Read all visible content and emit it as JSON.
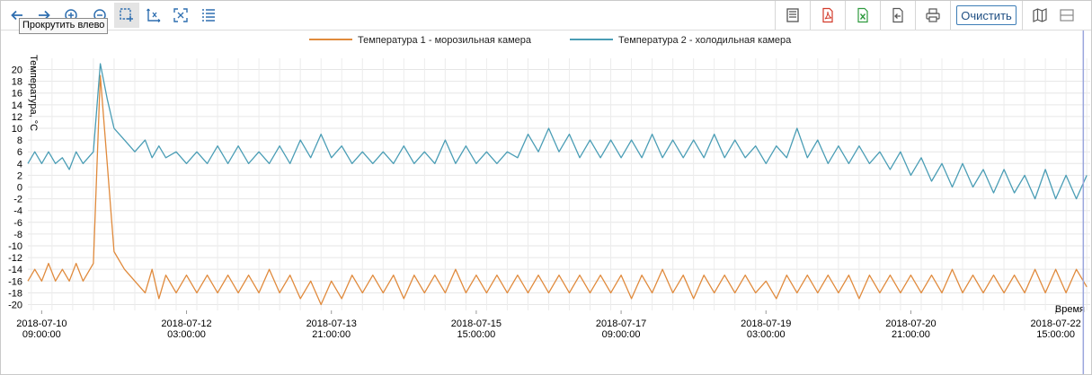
{
  "toolbar": {
    "tooltip": "Прокрутить влево",
    "clear_label": "Очистить",
    "icons": [
      "arrow-left-icon",
      "arrow-right-icon",
      "zoom-in-icon",
      "zoom-out-icon",
      "box-select-icon",
      "zoom-x-icon",
      "fit-to-screen-icon",
      "list-icon",
      "table-icon",
      "pdf-icon",
      "excel-icon",
      "export-icon",
      "print-icon",
      "map-icon",
      "panel-icon"
    ],
    "accent_color": "#3d7db6"
  },
  "chart_data": {
    "type": "line",
    "title": "",
    "xlabel": "Время",
    "ylabel": "Температура, °C",
    "ylim": [
      -21,
      21
    ],
    "yticks": [
      20,
      18,
      16,
      14,
      12,
      10,
      8,
      6,
      4,
      2,
      0,
      -2,
      -4,
      -6,
      -8,
      -10,
      -12,
      -14,
      -16,
      -18,
      -20
    ],
    "xrange": [
      "2018-07-10 05:00:00",
      "2018-07-23 01:00:00"
    ],
    "xticks": [
      {
        "date": "2018-07-10",
        "time": "09:00:00"
      },
      {
        "date": "2018-07-12",
        "time": "03:00:00"
      },
      {
        "date": "2018-07-13",
        "time": "21:00:00"
      },
      {
        "date": "2018-07-15",
        "time": "15:00:00"
      },
      {
        "date": "2018-07-17",
        "time": "09:00:00"
      },
      {
        "date": "2018-07-19",
        "time": "03:00:00"
      },
      {
        "date": "2018-07-20",
        "time": "21:00:00"
      },
      {
        "date": "2018-07-22",
        "time": "15:00:00"
      }
    ],
    "grid": true,
    "legend_position": "top-center",
    "cursor_time": "2018-07-22 23:00:00",
    "series": [
      {
        "name": "Температура 1 - морозильная камера",
        "color": "#e08a3c",
        "points": [
          [
            "2018-07-10 05:00",
            -16
          ],
          [
            "2018-07-10 07:00",
            -14
          ],
          [
            "2018-07-10 09:00",
            -16
          ],
          [
            "2018-07-10 11:00",
            -13
          ],
          [
            "2018-07-10 13:00",
            -16
          ],
          [
            "2018-07-10 15:00",
            -14
          ],
          [
            "2018-07-10 17:00",
            -16
          ],
          [
            "2018-07-10 19:00",
            -13
          ],
          [
            "2018-07-10 21:00",
            -16
          ],
          [
            "2018-07-11 00:00",
            -13
          ],
          [
            "2018-07-11 02:00",
            19
          ],
          [
            "2018-07-11 04:00",
            4
          ],
          [
            "2018-07-11 06:00",
            -11
          ],
          [
            "2018-07-11 09:00",
            -14
          ],
          [
            "2018-07-11 12:00",
            -16
          ],
          [
            "2018-07-11 15:00",
            -18
          ],
          [
            "2018-07-11 17:00",
            -14
          ],
          [
            "2018-07-11 19:00",
            -19
          ],
          [
            "2018-07-11 21:00",
            -15
          ],
          [
            "2018-07-12 00:00",
            -18
          ],
          [
            "2018-07-12 03:00",
            -15
          ],
          [
            "2018-07-12 06:00",
            -18
          ],
          [
            "2018-07-12 09:00",
            -15
          ],
          [
            "2018-07-12 12:00",
            -18
          ],
          [
            "2018-07-12 15:00",
            -15
          ],
          [
            "2018-07-12 18:00",
            -18
          ],
          [
            "2018-07-12 21:00",
            -15
          ],
          [
            "2018-07-13 00:00",
            -18
          ],
          [
            "2018-07-13 03:00",
            -14
          ],
          [
            "2018-07-13 06:00",
            -18
          ],
          [
            "2018-07-13 09:00",
            -15
          ],
          [
            "2018-07-13 12:00",
            -19
          ],
          [
            "2018-07-13 15:00",
            -16
          ],
          [
            "2018-07-13 18:00",
            -20
          ],
          [
            "2018-07-13 21:00",
            -16
          ],
          [
            "2018-07-14 00:00",
            -19
          ],
          [
            "2018-07-14 03:00",
            -15
          ],
          [
            "2018-07-14 06:00",
            -18
          ],
          [
            "2018-07-14 09:00",
            -15
          ],
          [
            "2018-07-14 12:00",
            -18
          ],
          [
            "2018-07-14 15:00",
            -15
          ],
          [
            "2018-07-14 18:00",
            -19
          ],
          [
            "2018-07-14 21:00",
            -15
          ],
          [
            "2018-07-15 00:00",
            -18
          ],
          [
            "2018-07-15 03:00",
            -15
          ],
          [
            "2018-07-15 06:00",
            -18
          ],
          [
            "2018-07-15 09:00",
            -14
          ],
          [
            "2018-07-15 12:00",
            -18
          ],
          [
            "2018-07-15 15:00",
            -15
          ],
          [
            "2018-07-15 18:00",
            -18
          ],
          [
            "2018-07-15 21:00",
            -15
          ],
          [
            "2018-07-16 00:00",
            -18
          ],
          [
            "2018-07-16 03:00",
            -15
          ],
          [
            "2018-07-16 06:00",
            -18
          ],
          [
            "2018-07-16 09:00",
            -15
          ],
          [
            "2018-07-16 12:00",
            -18
          ],
          [
            "2018-07-16 15:00",
            -15
          ],
          [
            "2018-07-16 18:00",
            -18
          ],
          [
            "2018-07-16 21:00",
            -15
          ],
          [
            "2018-07-17 00:00",
            -18
          ],
          [
            "2018-07-17 03:00",
            -15
          ],
          [
            "2018-07-17 06:00",
            -18
          ],
          [
            "2018-07-17 09:00",
            -15
          ],
          [
            "2018-07-17 12:00",
            -19
          ],
          [
            "2018-07-17 15:00",
            -15
          ],
          [
            "2018-07-17 18:00",
            -18
          ],
          [
            "2018-07-17 21:00",
            -14
          ],
          [
            "2018-07-18 00:00",
            -18
          ],
          [
            "2018-07-18 03:00",
            -15
          ],
          [
            "2018-07-18 06:00",
            -19
          ],
          [
            "2018-07-18 09:00",
            -15
          ],
          [
            "2018-07-18 12:00",
            -18
          ],
          [
            "2018-07-18 15:00",
            -15
          ],
          [
            "2018-07-18 18:00",
            -18
          ],
          [
            "2018-07-18 21:00",
            -15
          ],
          [
            "2018-07-19 00:00",
            -18
          ],
          [
            "2018-07-19 03:00",
            -16
          ],
          [
            "2018-07-19 06:00",
            -19
          ],
          [
            "2018-07-19 09:00",
            -15
          ],
          [
            "2018-07-19 12:00",
            -18
          ],
          [
            "2018-07-19 15:00",
            -15
          ],
          [
            "2018-07-19 18:00",
            -18
          ],
          [
            "2018-07-19 21:00",
            -15
          ],
          [
            "2018-07-20 00:00",
            -18
          ],
          [
            "2018-07-20 03:00",
            -15
          ],
          [
            "2018-07-20 06:00",
            -19
          ],
          [
            "2018-07-20 09:00",
            -15
          ],
          [
            "2018-07-20 12:00",
            -18
          ],
          [
            "2018-07-20 15:00",
            -15
          ],
          [
            "2018-07-20 18:00",
            -18
          ],
          [
            "2018-07-20 21:00",
            -15
          ],
          [
            "2018-07-21 00:00",
            -18
          ],
          [
            "2018-07-21 03:00",
            -15
          ],
          [
            "2018-07-21 06:00",
            -18
          ],
          [
            "2018-07-21 09:00",
            -14
          ],
          [
            "2018-07-21 12:00",
            -18
          ],
          [
            "2018-07-21 15:00",
            -15
          ],
          [
            "2018-07-21 18:00",
            -18
          ],
          [
            "2018-07-21 21:00",
            -15
          ],
          [
            "2018-07-22 00:00",
            -18
          ],
          [
            "2018-07-22 03:00",
            -15
          ],
          [
            "2018-07-22 06:00",
            -18
          ],
          [
            "2018-07-22 09:00",
            -14
          ],
          [
            "2018-07-22 12:00",
            -18
          ],
          [
            "2018-07-22 15:00",
            -14
          ],
          [
            "2018-07-22 18:00",
            -18
          ],
          [
            "2018-07-22 21:00",
            -14
          ],
          [
            "2018-07-23 00:00",
            -17
          ]
        ]
      },
      {
        "name": "Температура 2 - холодильная камера",
        "color": "#4a9db5",
        "points": [
          [
            "2018-07-10 05:00",
            4
          ],
          [
            "2018-07-10 07:00",
            6
          ],
          [
            "2018-07-10 09:00",
            4
          ],
          [
            "2018-07-10 11:00",
            6
          ],
          [
            "2018-07-10 13:00",
            4
          ],
          [
            "2018-07-10 15:00",
            5
          ],
          [
            "2018-07-10 17:00",
            3
          ],
          [
            "2018-07-10 19:00",
            6
          ],
          [
            "2018-07-10 21:00",
            4
          ],
          [
            "2018-07-11 00:00",
            6
          ],
          [
            "2018-07-11 02:00",
            21
          ],
          [
            "2018-07-11 04:00",
            15
          ],
          [
            "2018-07-11 06:00",
            10
          ],
          [
            "2018-07-11 09:00",
            8
          ],
          [
            "2018-07-11 12:00",
            6
          ],
          [
            "2018-07-11 15:00",
            8
          ],
          [
            "2018-07-11 17:00",
            5
          ],
          [
            "2018-07-11 19:00",
            7
          ],
          [
            "2018-07-11 21:00",
            5
          ],
          [
            "2018-07-12 00:00",
            6
          ],
          [
            "2018-07-12 03:00",
            4
          ],
          [
            "2018-07-12 06:00",
            6
          ],
          [
            "2018-07-12 09:00",
            4
          ],
          [
            "2018-07-12 12:00",
            7
          ],
          [
            "2018-07-12 15:00",
            4
          ],
          [
            "2018-07-12 18:00",
            7
          ],
          [
            "2018-07-12 21:00",
            4
          ],
          [
            "2018-07-13 00:00",
            6
          ],
          [
            "2018-07-13 03:00",
            4
          ],
          [
            "2018-07-13 06:00",
            7
          ],
          [
            "2018-07-13 09:00",
            4
          ],
          [
            "2018-07-13 12:00",
            8
          ],
          [
            "2018-07-13 15:00",
            5
          ],
          [
            "2018-07-13 18:00",
            9
          ],
          [
            "2018-07-13 21:00",
            5
          ],
          [
            "2018-07-14 00:00",
            7
          ],
          [
            "2018-07-14 03:00",
            4
          ],
          [
            "2018-07-14 06:00",
            6
          ],
          [
            "2018-07-14 09:00",
            4
          ],
          [
            "2018-07-14 12:00",
            6
          ],
          [
            "2018-07-14 15:00",
            4
          ],
          [
            "2018-07-14 18:00",
            7
          ],
          [
            "2018-07-14 21:00",
            4
          ],
          [
            "2018-07-15 00:00",
            6
          ],
          [
            "2018-07-15 03:00",
            4
          ],
          [
            "2018-07-15 06:00",
            8
          ],
          [
            "2018-07-15 09:00",
            4
          ],
          [
            "2018-07-15 12:00",
            7
          ],
          [
            "2018-07-15 15:00",
            4
          ],
          [
            "2018-07-15 18:00",
            6
          ],
          [
            "2018-07-15 21:00",
            4
          ],
          [
            "2018-07-16 00:00",
            6
          ],
          [
            "2018-07-16 03:00",
            5
          ],
          [
            "2018-07-16 06:00",
            9
          ],
          [
            "2018-07-16 09:00",
            6
          ],
          [
            "2018-07-16 12:00",
            10
          ],
          [
            "2018-07-16 15:00",
            6
          ],
          [
            "2018-07-16 18:00",
            9
          ],
          [
            "2018-07-16 21:00",
            5
          ],
          [
            "2018-07-17 00:00",
            8
          ],
          [
            "2018-07-17 03:00",
            5
          ],
          [
            "2018-07-17 06:00",
            8
          ],
          [
            "2018-07-17 09:00",
            5
          ],
          [
            "2018-07-17 12:00",
            8
          ],
          [
            "2018-07-17 15:00",
            5
          ],
          [
            "2018-07-17 18:00",
            9
          ],
          [
            "2018-07-17 21:00",
            5
          ],
          [
            "2018-07-18 00:00",
            8
          ],
          [
            "2018-07-18 03:00",
            5
          ],
          [
            "2018-07-18 06:00",
            8
          ],
          [
            "2018-07-18 09:00",
            5
          ],
          [
            "2018-07-18 12:00",
            9
          ],
          [
            "2018-07-18 15:00",
            5
          ],
          [
            "2018-07-18 18:00",
            8
          ],
          [
            "2018-07-18 21:00",
            5
          ],
          [
            "2018-07-19 00:00",
            7
          ],
          [
            "2018-07-19 03:00",
            4
          ],
          [
            "2018-07-19 06:00",
            7
          ],
          [
            "2018-07-19 09:00",
            5
          ],
          [
            "2018-07-19 12:00",
            10
          ],
          [
            "2018-07-19 15:00",
            5
          ],
          [
            "2018-07-19 18:00",
            8
          ],
          [
            "2018-07-19 21:00",
            4
          ],
          [
            "2018-07-20 00:00",
            7
          ],
          [
            "2018-07-20 03:00",
            4
          ],
          [
            "2018-07-20 06:00",
            7
          ],
          [
            "2018-07-20 09:00",
            4
          ],
          [
            "2018-07-20 12:00",
            6
          ],
          [
            "2018-07-20 15:00",
            3
          ],
          [
            "2018-07-20 18:00",
            6
          ],
          [
            "2018-07-20 21:00",
            2
          ],
          [
            "2018-07-21 00:00",
            5
          ],
          [
            "2018-07-21 03:00",
            1
          ],
          [
            "2018-07-21 06:00",
            4
          ],
          [
            "2018-07-21 09:00",
            0
          ],
          [
            "2018-07-21 12:00",
            4
          ],
          [
            "2018-07-21 15:00",
            0
          ],
          [
            "2018-07-21 18:00",
            3
          ],
          [
            "2018-07-21 21:00",
            -1
          ],
          [
            "2018-07-22 00:00",
            3
          ],
          [
            "2018-07-22 03:00",
            -1
          ],
          [
            "2018-07-22 06:00",
            2
          ],
          [
            "2018-07-22 09:00",
            -2
          ],
          [
            "2018-07-22 12:00",
            3
          ],
          [
            "2018-07-22 15:00",
            -2
          ],
          [
            "2018-07-22 18:00",
            2
          ],
          [
            "2018-07-22 21:00",
            -2
          ],
          [
            "2018-07-23 00:00",
            2
          ]
        ]
      }
    ]
  }
}
